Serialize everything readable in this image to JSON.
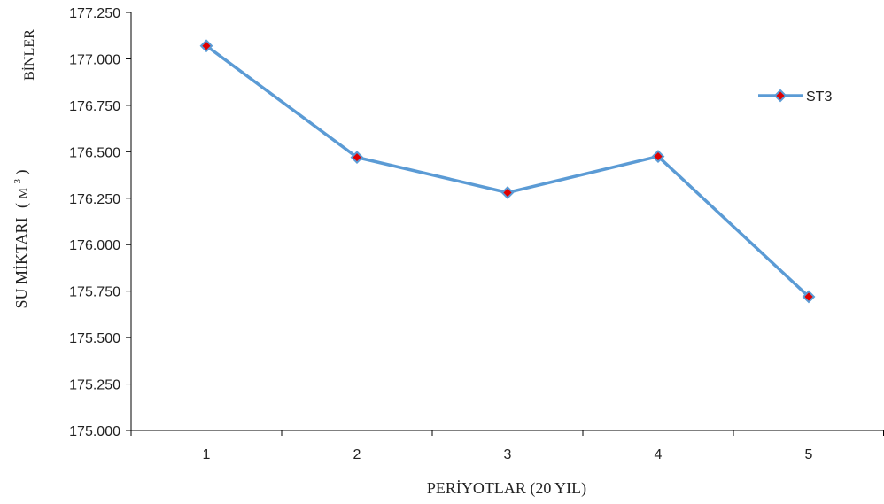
{
  "chart_data": {
    "type": "line",
    "x": [
      1,
      2,
      3,
      4,
      5
    ],
    "x_tick_labels": [
      "1",
      "2",
      "3",
      "4",
      "5"
    ],
    "series": [
      {
        "name": "ST3",
        "values": [
          177.07,
          176.47,
          176.28,
          176.475,
          175.72
        ]
      }
    ],
    "ylim": [
      175.0,
      177.25
    ],
    "y_ticks": [
      175.0,
      175.25,
      175.5,
      175.75,
      176.0,
      176.25,
      176.5,
      176.75,
      177.0,
      177.25
    ],
    "y_tick_labels": [
      "175.000",
      "175.250",
      "175.500",
      "175.750",
      "176.000",
      "176.250",
      "176.500",
      "176.750",
      "177.000",
      "177.250"
    ],
    "xlabel": "PERİYOTLAR (20 YIL)",
    "ylabel_main": "SU MİKTARI",
    "ylabel_unit_open": "(",
    "ylabel_unit_letter": "M",
    "ylabel_unit_power": "3",
    "ylabel_unit_close": ")",
    "y_display_unit": "BİNLER",
    "grid": false,
    "legend_position": "right",
    "colors": {
      "line": "#5b9bd5",
      "marker_fill": "#e00000",
      "marker_edge": "#5b9bd5",
      "axis": "#000000"
    }
  }
}
